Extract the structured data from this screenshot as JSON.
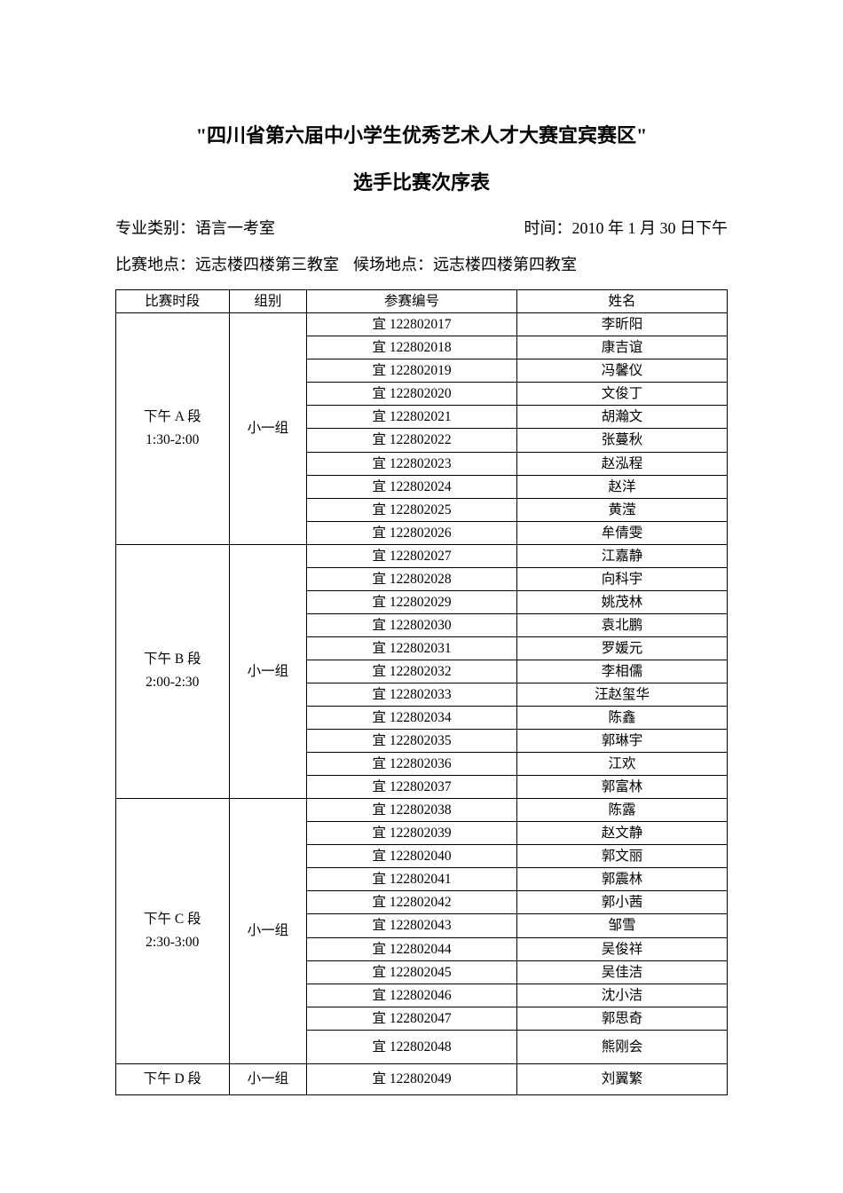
{
  "title_line_1": "\"四川省第六届中小学生优秀艺术人才大赛宜宾赛区\"",
  "title_line_2": "选手比赛次序表",
  "info": {
    "category_label": "专业类别：",
    "category_value": "语言一考室",
    "time_label": "时间：",
    "time_value": "2010 年 1 月 30 日下午",
    "location_label": "比赛地点：",
    "location_value": "远志楼四楼第三教室",
    "waiting_label": "候场地点：",
    "waiting_value": "远志楼四楼第四教室"
  },
  "table": {
    "headers": {
      "time": "比赛时段",
      "group": "组别",
      "entry_id": "参赛编号",
      "name": "姓名"
    },
    "sessions": [
      {
        "time_slot": "下午 A 段\n1:30-2:00",
        "group": "小一组",
        "rows": [
          {
            "id": "宜 122802017",
            "name": "李昕阳"
          },
          {
            "id": "宜 122802018",
            "name": "康吉谊"
          },
          {
            "id": "宜 122802019",
            "name": "冯馨仪"
          },
          {
            "id": "宜 122802020",
            "name": "文俊丁"
          },
          {
            "id": "宜 122802021",
            "name": "胡瀚文"
          },
          {
            "id": "宜 122802022",
            "name": "张蔓秋"
          },
          {
            "id": "宜 122802023",
            "name": "赵泓程"
          },
          {
            "id": "宜 122802024",
            "name": "赵洋"
          },
          {
            "id": "宜 122802025",
            "name": "黄滢"
          },
          {
            "id": "宜 122802026",
            "name": "牟倩雯"
          }
        ]
      },
      {
        "time_slot": "下午 B 段\n2:00-2:30",
        "group": "小一组",
        "rows": [
          {
            "id": "宜 122802027",
            "name": "江嘉静"
          },
          {
            "id": "宜 122802028",
            "name": "向科宇"
          },
          {
            "id": "宜 122802029",
            "name": "姚茂林"
          },
          {
            "id": "宜 122802030",
            "name": "袁北鹏"
          },
          {
            "id": "宜 122802031",
            "name": "罗媛元"
          },
          {
            "id": "宜 122802032",
            "name": "李相儒"
          },
          {
            "id": "宜 122802033",
            "name": "汪赵玺华"
          },
          {
            "id": "宜 122802034",
            "name": "陈鑫"
          },
          {
            "id": "宜 122802035",
            "name": "郭琳宇"
          },
          {
            "id": "宜 122802036",
            "name": "江欢"
          },
          {
            "id": "宜 122802037",
            "name": "郭富林"
          }
        ]
      },
      {
        "time_slot": "下午 C 段\n2:30-3:00",
        "group": "小一组",
        "rows": [
          {
            "id": "宜 122802038",
            "name": "陈露"
          },
          {
            "id": "宜 122802039",
            "name": "赵文静"
          },
          {
            "id": "宜 122802040",
            "name": "郭文丽"
          },
          {
            "id": "宜 122802041",
            "name": "郭震林"
          },
          {
            "id": "宜 122802042",
            "name": "郭小茜"
          },
          {
            "id": "宜 122802043",
            "name": "邹雪"
          },
          {
            "id": "宜 122802044",
            "name": "吴俊祥"
          },
          {
            "id": "宜 122802045",
            "name": "吴佳洁"
          },
          {
            "id": "宜 122802046",
            "name": "沈小洁"
          },
          {
            "id": "宜 122802047",
            "name": "郭思奇"
          },
          {
            "id": "宜 122802048",
            "name": "熊刚会",
            "tall": true
          }
        ]
      },
      {
        "time_slot": "下午 D 段",
        "group": "小一组",
        "rows": [
          {
            "id": "宜 122802049",
            "name": "刘翼繁"
          }
        ]
      }
    ]
  }
}
